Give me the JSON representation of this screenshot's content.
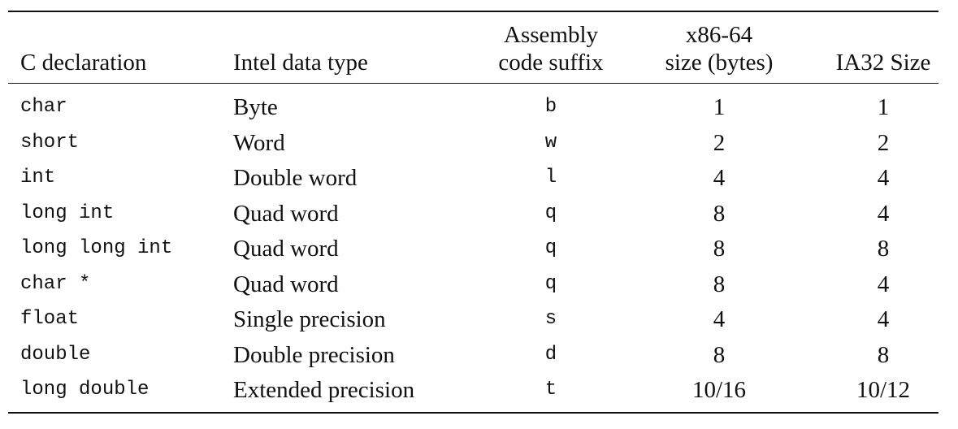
{
  "table": {
    "header": [
      [
        "C declaration"
      ],
      [
        "Intel data type"
      ],
      [
        "Assembly",
        "code suffix"
      ],
      [
        "x86-64",
        "size (bytes)"
      ],
      [
        "IA32 Size"
      ]
    ],
    "rows": [
      [
        "char",
        "Byte",
        "b",
        1,
        1
      ],
      [
        "short",
        "Word",
        "w",
        2,
        2
      ],
      [
        "int",
        "Double word",
        "l",
        4,
        4
      ],
      [
        "long int",
        "Quad word",
        "q",
        8,
        4
      ],
      [
        "long long int",
        "Quad word",
        "q",
        8,
        8
      ],
      [
        "char *",
        "Quad word",
        "q",
        8,
        4
      ],
      [
        "float",
        "Single precision",
        "s",
        4,
        4
      ],
      [
        "double",
        "Double precision",
        "d",
        8,
        8
      ],
      [
        "long double",
        "Extended precision",
        "t",
        "10/16",
        "10/12"
      ]
    ]
  }
}
